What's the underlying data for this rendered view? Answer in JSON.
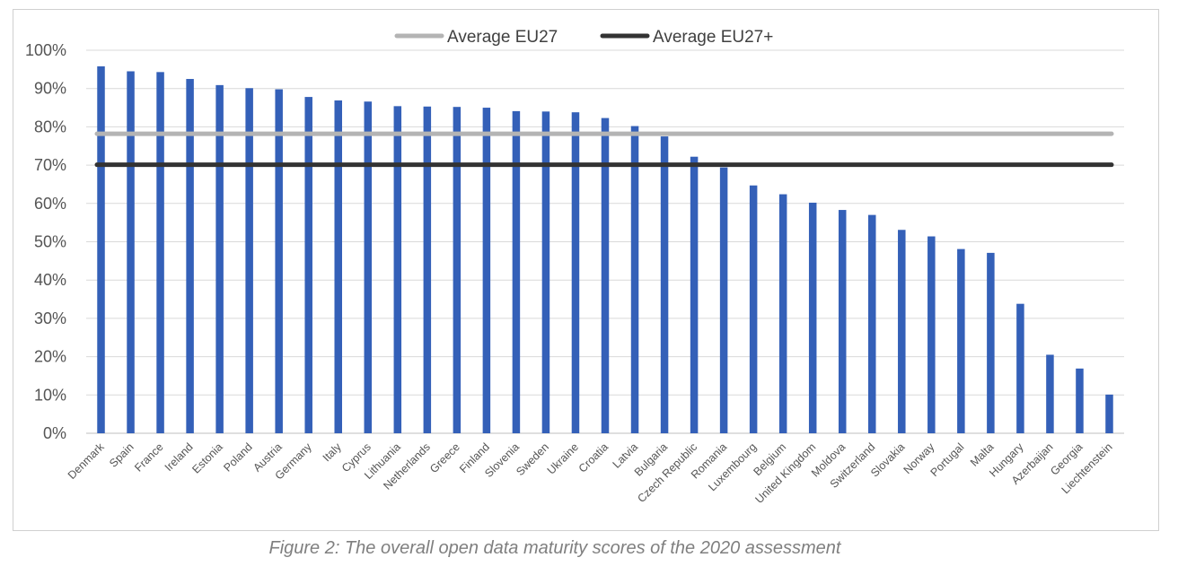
{
  "caption": "Figure 2: The overall open data maturity scores of the 2020 assessment",
  "chart_data": {
    "type": "bar",
    "title": "",
    "xlabel": "",
    "ylabel": "",
    "ylim": [
      0,
      100
    ],
    "y_ticks": [
      "0%",
      "10%",
      "20%",
      "30%",
      "40%",
      "50%",
      "60%",
      "70%",
      "80%",
      "90%",
      "100%"
    ],
    "grid": true,
    "legend_position": "top",
    "categories": [
      "Denmark",
      "Spain",
      "France",
      "Ireland",
      "Estonia",
      "Poland",
      "Austria",
      "Germany",
      "Italy",
      "Cyprus",
      "Lithuania",
      "Netherlands",
      "Greece",
      "Finland",
      "Slovenia",
      "Sweden",
      "Ukraine",
      "Croatia",
      "Latvia",
      "Bulgaria",
      "Czech Republic",
      "Romania",
      "Luxembourg",
      "Belgium",
      "United Kingdom",
      "Moldova",
      "Switzerland",
      "Slovakia",
      "Norway",
      "Portugal",
      "Malta",
      "Hungary",
      "Azerbaijan",
      "Georgia",
      "Liechtenstein"
    ],
    "values": [
      95.8,
      94.5,
      94.3,
      92.5,
      90.9,
      90.1,
      89.8,
      87.8,
      86.9,
      86.6,
      85.4,
      85.3,
      85.2,
      85.0,
      84.1,
      84.0,
      83.8,
      82.3,
      80.2,
      77.5,
      72.2,
      69.4,
      64.7,
      62.4,
      60.2,
      58.3,
      57.0,
      53.1,
      51.4,
      48.1,
      47.1,
      33.8,
      20.5,
      16.9,
      10.1
    ],
    "bar_color": "#3460b8",
    "reference_lines": [
      {
        "name": "Average EU27",
        "value": 78.2,
        "color": "#b4b4b4"
      },
      {
        "name": "Average EU27+",
        "value": 70.1,
        "color": "#333333"
      }
    ]
  }
}
